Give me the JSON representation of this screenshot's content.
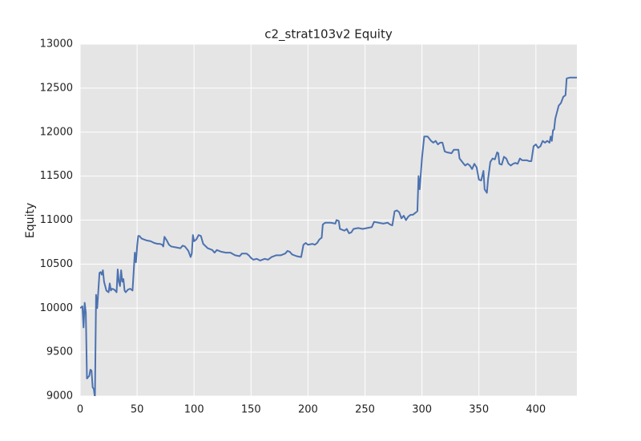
{
  "chart_data": {
    "type": "line",
    "title": "c2_strat103v2 Equity",
    "y_label": "Equity",
    "x": [
      0,
      2,
      3,
      4,
      5,
      6,
      8,
      9,
      10,
      11,
      12,
      13,
      14,
      15,
      16,
      17,
      18,
      19,
      20,
      21,
      22,
      23,
      24,
      25,
      26,
      27,
      28,
      30,
      32,
      33,
      34,
      35,
      36,
      37,
      38,
      39,
      40,
      42,
      44,
      46,
      48,
      49,
      50,
      51,
      52,
      54,
      58,
      62,
      65,
      68,
      70,
      72,
      73,
      74,
      76,
      78,
      80,
      84,
      88,
      90,
      92,
      95,
      97,
      98,
      99,
      100,
      102,
      104,
      106,
      108,
      112,
      116,
      118,
      120,
      124,
      128,
      132,
      136,
      140,
      142,
      144,
      146,
      148,
      150,
      152,
      155,
      158,
      162,
      165,
      168,
      172,
      176,
      180,
      182,
      184,
      186,
      190,
      194,
      196,
      198,
      200,
      204,
      206,
      208,
      210,
      212,
      213,
      215,
      220,
      224,
      225,
      227,
      228,
      232,
      234,
      236,
      238,
      240,
      244,
      248,
      252,
      256,
      258,
      262,
      266,
      270,
      272,
      274,
      276,
      278,
      280,
      282,
      284,
      286,
      288,
      290,
      292,
      294,
      296,
      297,
      298,
      300,
      302,
      305,
      308,
      310,
      312,
      314,
      316,
      318,
      320,
      322,
      326,
      328,
      332,
      333,
      336,
      338,
      340,
      342,
      344,
      346,
      348,
      350,
      352,
      354,
      355,
      357,
      358,
      360,
      362,
      364,
      366,
      367,
      368,
      370,
      372,
      374,
      376,
      378,
      380,
      382,
      384,
      386,
      388,
      392,
      394,
      396,
      398,
      400,
      402,
      404,
      406,
      408,
      410,
      412,
      413,
      414,
      415,
      416,
      417,
      418,
      420,
      422,
      424,
      426,
      427,
      430,
      436
    ],
    "values": [
      10000,
      10020,
      9780,
      10060,
      9950,
      9200,
      9230,
      9300,
      9290,
      9100,
      9080,
      8980,
      10150,
      10000,
      10200,
      10400,
      10410,
      10380,
      10430,
      10300,
      10250,
      10200,
      10190,
      10180,
      10280,
      10200,
      10220,
      10210,
      10180,
      10440,
      10300,
      10250,
      10430,
      10300,
      10330,
      10200,
      10180,
      10210,
      10220,
      10200,
      10630,
      10520,
      10700,
      10820,
      10820,
      10790,
      10770,
      10760,
      10740,
      10730,
      10730,
      10720,
      10700,
      10810,
      10770,
      10720,
      10700,
      10690,
      10680,
      10710,
      10700,
      10650,
      10580,
      10620,
      10830,
      10760,
      10780,
      10830,
      10820,
      10730,
      10680,
      10660,
      10630,
      10660,
      10640,
      10630,
      10630,
      10600,
      10590,
      10620,
      10620,
      10620,
      10600,
      10570,
      10550,
      10560,
      10540,
      10560,
      10550,
      10580,
      10600,
      10600,
      10620,
      10650,
      10640,
      10610,
      10590,
      10580,
      10720,
      10740,
      10720,
      10730,
      10720,
      10740,
      10780,
      10800,
      10950,
      10970,
      10970,
      10960,
      11000,
      10990,
      10900,
      10880,
      10900,
      10850,
      10860,
      10900,
      10910,
      10900,
      10910,
      10920,
      10980,
      10970,
      10960,
      10970,
      10950,
      10940,
      11100,
      11110,
      11090,
      11020,
      11050,
      11000,
      11040,
      11060,
      11060,
      11080,
      11100,
      11500,
      11350,
      11700,
      11950,
      11950,
      11900,
      11880,
      11900,
      11860,
      11880,
      11880,
      11780,
      11770,
      11760,
      11800,
      11800,
      11700,
      11650,
      11620,
      11640,
      11620,
      11580,
      11640,
      11600,
      11460,
      11450,
      11560,
      11350,
      11310,
      11460,
      11660,
      11700,
      11690,
      11770,
      11760,
      11640,
      11630,
      11720,
      11700,
      11640,
      11620,
      11640,
      11650,
      11640,
      11700,
      11680,
      11680,
      11670,
      11670,
      11840,
      11860,
      11820,
      11840,
      11900,
      11880,
      11900,
      11880,
      11950,
      11900,
      12020,
      12030,
      12150,
      12200,
      12300,
      12330,
      12400,
      12420,
      12610,
      12620,
      12620
    ],
    "color": "#4c72b0",
    "xlim": [
      0,
      436
    ],
    "ylim": [
      9000,
      13000
    ],
    "xticks": [
      0,
      50,
      100,
      150,
      200,
      250,
      300,
      350,
      400
    ],
    "yticks": [
      9000,
      9500,
      10000,
      10500,
      11000,
      11500,
      12000,
      12500,
      13000
    ],
    "grid": true
  }
}
